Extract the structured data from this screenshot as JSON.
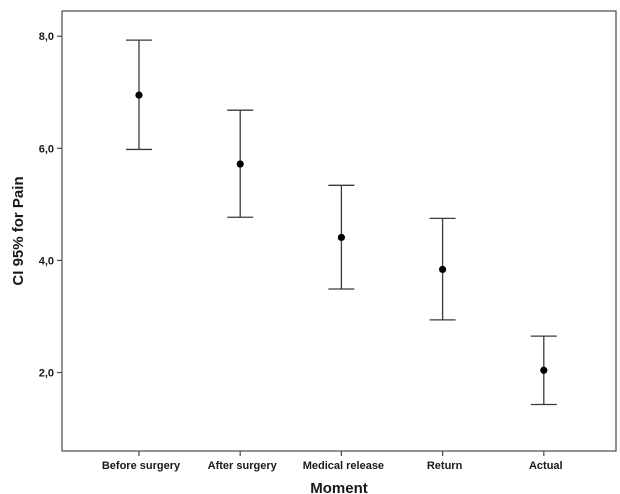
{
  "chart_data": {
    "type": "errorbar",
    "title": "",
    "xlabel": "Moment",
    "ylabel": "CI 95% for Pain",
    "categories": [
      "Before surgery",
      "After surgery",
      "Medical release",
      "Return",
      "Actual"
    ],
    "series": [
      {
        "mean": [
          6.95,
          5.72,
          4.41,
          3.84,
          2.04
        ],
        "ci_upper": [
          7.93,
          6.68,
          5.34,
          4.75,
          2.65
        ],
        "ci_lower": [
          5.98,
          4.77,
          3.49,
          2.94,
          1.43
        ]
      }
    ],
    "yticks": [
      "8,0",
      "6,0",
      "4,0",
      "2,0"
    ],
    "ytick_values": [
      8,
      6,
      4,
      2
    ],
    "ylim": [
      0.6,
      8.45
    ],
    "grid": false,
    "legend": "none",
    "colors": {
      "marker": "#000000",
      "errorbar": "#3a3a3a",
      "frame": "#4a4a4a",
      "text": "#1a1a1a"
    }
  }
}
